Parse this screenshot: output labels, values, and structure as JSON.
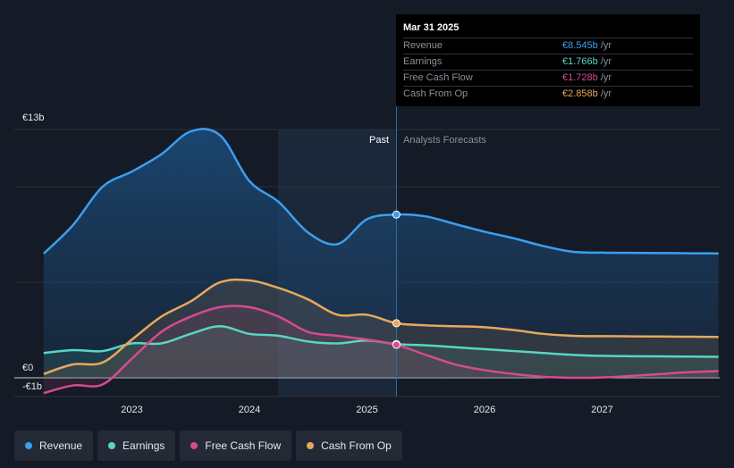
{
  "chart_data": {
    "type": "line",
    "x": [
      2022.25,
      2022.5,
      2022.75,
      2023.0,
      2023.25,
      2023.5,
      2023.75,
      2024.0,
      2024.25,
      2024.5,
      2024.75,
      2025.0,
      2025.25,
      2025.5,
      2025.75,
      2026.0,
      2026.25,
      2026.5,
      2026.75,
      2027.0,
      2027.25,
      2027.5,
      2027.75,
      2027.99
    ],
    "forecast_start_x": 2025.25,
    "series": [
      {
        "name": "Revenue",
        "color": "#3a9ff0",
        "fill": true,
        "values": [
          6.5,
          8.0,
          10.0,
          10.8,
          11.7,
          12.9,
          12.7,
          10.3,
          9.2,
          7.6,
          7.0,
          8.3,
          8.545,
          8.45,
          8.05,
          7.65,
          7.3,
          6.9,
          6.6,
          6.55,
          6.54,
          6.53,
          6.52,
          6.51
        ]
      },
      {
        "name": "Earnings",
        "color": "#58d6c4",
        "fill": true,
        "values": [
          1.3,
          1.45,
          1.4,
          1.8,
          1.8,
          2.3,
          2.7,
          2.3,
          2.2,
          1.9,
          1.8,
          1.95,
          1.766,
          1.7,
          1.6,
          1.5,
          1.4,
          1.3,
          1.2,
          1.15,
          1.13,
          1.12,
          1.11,
          1.1
        ]
      },
      {
        "name": "Free Cash Flow",
        "color": "#d64b8f",
        "fill": true,
        "values": [
          -0.8,
          -0.4,
          -0.35,
          1.0,
          2.4,
          3.2,
          3.7,
          3.7,
          3.2,
          2.4,
          2.2,
          2.0,
          1.728,
          1.2,
          0.7,
          0.4,
          0.2,
          0.05,
          0.0,
          0.02,
          0.1,
          0.2,
          0.3,
          0.35
        ]
      },
      {
        "name": "Cash From Op",
        "color": "#e8a85b",
        "fill": true,
        "values": [
          0.2,
          0.7,
          0.8,
          2.0,
          3.2,
          4.0,
          5.0,
          5.1,
          4.7,
          4.1,
          3.3,
          3.3,
          2.858,
          2.75,
          2.7,
          2.65,
          2.5,
          2.3,
          2.2,
          2.18,
          2.17,
          2.16,
          2.15,
          2.14
        ]
      }
    ],
    "ylim": [
      -1,
      13
    ],
    "y_tick_labels": [
      "€13b",
      "€0",
      "-€1b"
    ],
    "x_tick_labels": [
      {
        "x": 2023,
        "label": "2023"
      },
      {
        "x": 2024,
        "label": "2024"
      },
      {
        "x": 2025,
        "label": "2025"
      },
      {
        "x": 2026,
        "label": "2026"
      },
      {
        "x": 2027,
        "label": "2027"
      }
    ],
    "past_label": "Past",
    "forecast_label": "Analysts Forecasts",
    "xlabel": "",
    "ylabel": "",
    "legend_position": "bottom-left"
  },
  "tooltip": {
    "date": "Mar 31 2025",
    "rows": [
      {
        "label": "Revenue",
        "value": "€8.545b",
        "unit": "/yr",
        "color": "#3a9ff0"
      },
      {
        "label": "Earnings",
        "value": "€1.766b",
        "unit": "/yr",
        "color": "#58d6c4"
      },
      {
        "label": "Free Cash Flow",
        "value": "€1.728b",
        "unit": "/yr",
        "color": "#d64b8f"
      },
      {
        "label": "Cash From Op",
        "value": "€2.858b",
        "unit": "/yr",
        "color": "#e8a85b"
      }
    ]
  },
  "legend": [
    {
      "label": "Revenue",
      "color": "#3a9ff0"
    },
    {
      "label": "Earnings",
      "color": "#58d6c4"
    },
    {
      "label": "Free Cash Flow",
      "color": "#d64b8f"
    },
    {
      "label": "Cash From Op",
      "color": "#e8a85b"
    }
  ]
}
